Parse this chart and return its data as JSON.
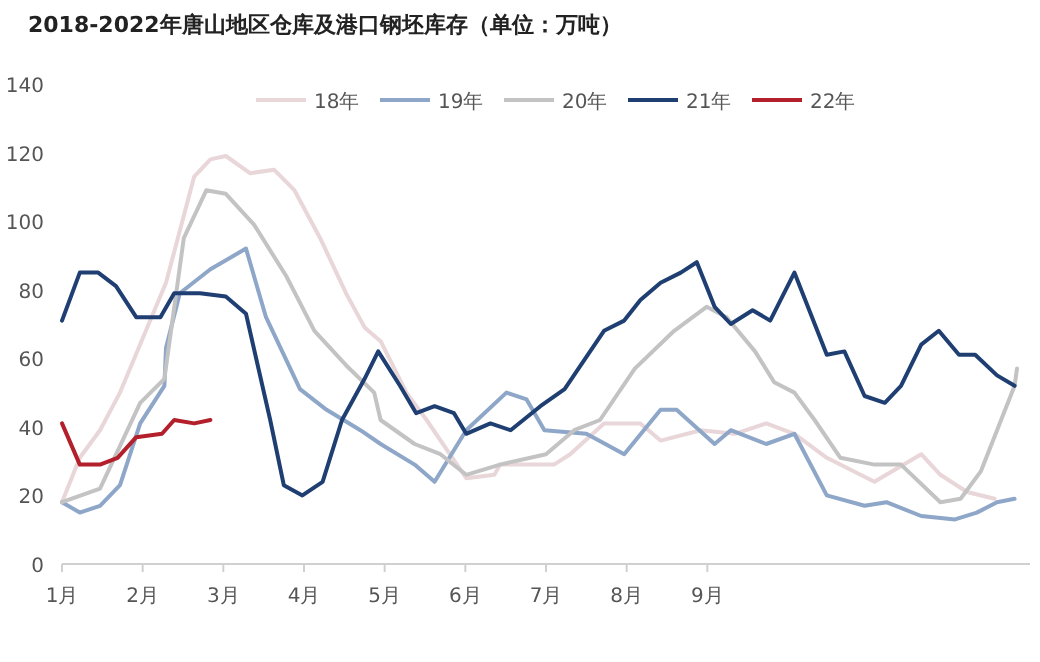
{
  "chart_data": {
    "type": "line",
    "title": "2018-2022年唐山地区仓库及港口钢坯库存（单位：万吨）",
    "xlim": [
      1,
      13
    ],
    "xticks": [
      {
        "value": 1,
        "label": "1月"
      },
      {
        "value": 2,
        "label": "2月"
      },
      {
        "value": 3,
        "label": "3月"
      },
      {
        "value": 4,
        "label": "4月"
      },
      {
        "value": 5,
        "label": "5月"
      },
      {
        "value": 6,
        "label": "6月"
      },
      {
        "value": 7,
        "label": "7月"
      },
      {
        "value": 8,
        "label": "8月"
      },
      {
        "value": 9,
        "label": "9月"
      }
    ],
    "ylim": [
      0,
      140
    ],
    "yticks": [
      0,
      20,
      40,
      60,
      80,
      100,
      120,
      140
    ],
    "grid": false,
    "legend": "top",
    "marker": "none",
    "line_style": "solid",
    "series": [
      {
        "name": "18年",
        "color": "#e8d6d8",
        "x": [
          1.0,
          1.22,
          1.47,
          1.72,
          2.29,
          2.64,
          2.84,
          3.03,
          3.33,
          3.63,
          3.88,
          4.2,
          4.52,
          4.75,
          4.95,
          5.27,
          5.52,
          6.01,
          6.36,
          6.43,
          7.1,
          7.3,
          7.72,
          8.17,
          8.42,
          8.92,
          9.34,
          9.73,
          10.08,
          10.48,
          11.07,
          11.65,
          11.89,
          12.22,
          12.56
        ],
        "values": [
          18,
          31,
          39,
          50,
          82,
          113,
          118,
          119,
          114,
          115,
          109,
          95,
          79,
          69,
          65,
          50,
          42,
          25,
          26,
          29,
          29,
          32,
          41,
          41,
          36,
          39,
          38,
          41,
          38,
          31,
          24,
          32,
          26,
          21,
          19
        ]
      },
      {
        "name": "19年",
        "color": "#8ea6c8",
        "x": [
          1.0,
          1.22,
          1.47,
          1.72,
          1.97,
          2.27,
          2.29,
          2.46,
          2.84,
          3.28,
          3.53,
          3.95,
          4.28,
          4.7,
          4.95,
          5.37,
          5.62,
          6.01,
          6.51,
          6.76,
          6.98,
          7.5,
          7.97,
          8.42,
          8.62,
          9.09,
          9.29,
          9.73,
          10.08,
          10.48,
          10.95,
          11.22,
          11.65,
          12.07,
          12.34,
          12.59,
          12.81
        ],
        "values": [
          18,
          15,
          17,
          23,
          41,
          52,
          63,
          79,
          86,
          92,
          72,
          51,
          45,
          39,
          35,
          29,
          24,
          39,
          50,
          48,
          39,
          38,
          32,
          45,
          45,
          35,
          39,
          35,
          38,
          20,
          17,
          18,
          14,
          13,
          15,
          18,
          19
        ]
      },
      {
        "name": "20年",
        "color": "#c3c3c3",
        "x": [
          1.0,
          1.47,
          1.97,
          2.27,
          2.51,
          2.79,
          3.03,
          3.38,
          3.78,
          4.13,
          4.52,
          4.87,
          4.95,
          5.37,
          5.69,
          6.01,
          6.43,
          7.0,
          7.35,
          7.67,
          8.1,
          8.59,
          8.99,
          9.24,
          9.59,
          9.83,
          10.08,
          10.33,
          10.65,
          11.07,
          11.4,
          11.89,
          12.14,
          12.39,
          12.81,
          12.84
        ],
        "values": [
          18,
          22,
          47,
          54,
          95,
          109,
          108,
          99,
          84,
          68,
          58,
          50,
          42,
          35,
          32,
          26,
          29,
          32,
          39,
          42,
          57,
          68,
          75,
          72,
          62,
          53,
          50,
          42,
          31,
          29,
          29,
          18,
          19,
          27,
          52,
          57
        ]
      },
      {
        "name": "21年",
        "color": "#1f3f73",
        "x": [
          1.0,
          1.22,
          1.45,
          1.67,
          1.92,
          2.22,
          2.39,
          2.71,
          3.03,
          3.28,
          3.58,
          3.75,
          3.98,
          4.23,
          4.47,
          4.75,
          4.92,
          5.19,
          5.39,
          5.62,
          5.86,
          6.01,
          6.31,
          6.56,
          6.93,
          7.23,
          7.72,
          7.97,
          8.17,
          8.42,
          8.67,
          8.87,
          9.09,
          9.29,
          9.56,
          9.78,
          10.08,
          10.48,
          10.7,
          10.95,
          11.2,
          11.4,
          11.65,
          11.87,
          12.12,
          12.32,
          12.59,
          12.81
        ],
        "values": [
          71,
          85,
          85,
          81,
          72,
          72,
          79,
          79,
          78,
          73,
          42,
          23,
          20,
          24,
          42,
          54,
          62,
          52,
          44,
          46,
          44,
          38,
          41,
          39,
          46,
          51,
          68,
          71,
          77,
          82,
          85,
          88,
          75,
          70,
          74,
          71,
          85,
          61,
          62,
          49,
          47,
          52,
          64,
          68,
          61,
          61,
          55,
          52
        ]
      },
      {
        "name": "22年",
        "color": "#b3202c",
        "x": [
          1.0,
          1.22,
          1.47,
          1.69,
          1.92,
          2.24,
          2.39,
          2.64,
          2.84
        ],
        "values": [
          41,
          29,
          29,
          31,
          37,
          38,
          42,
          41,
          42
        ]
      }
    ]
  }
}
